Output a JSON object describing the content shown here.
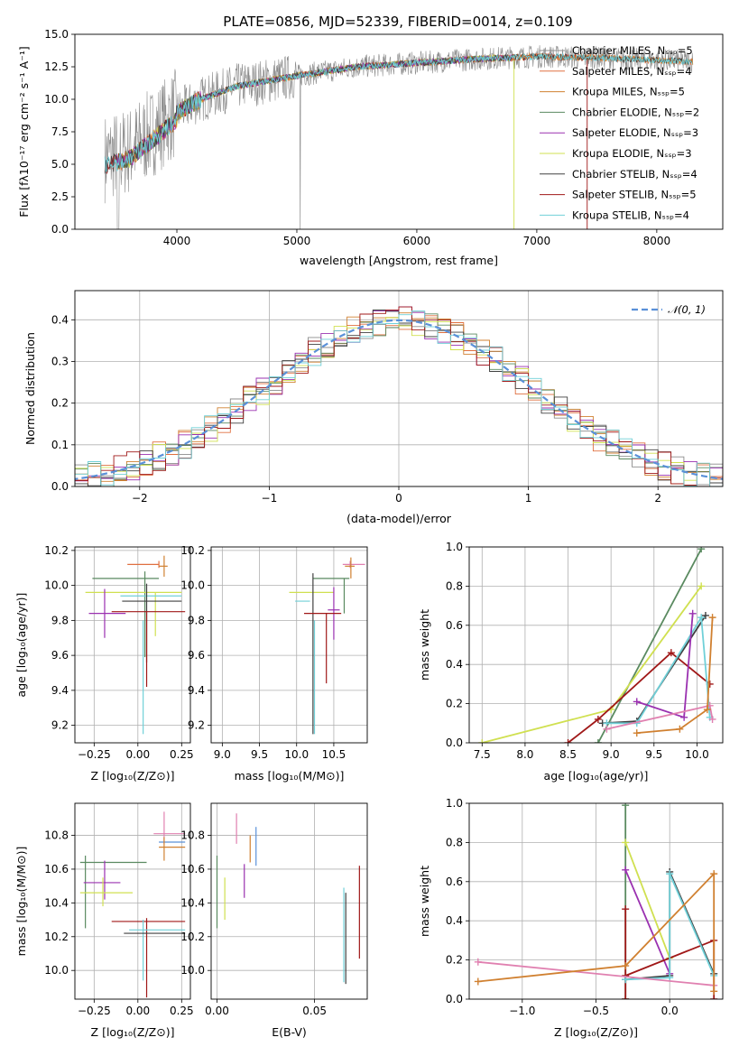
{
  "title": "PLATE=0856, MJD=52339, FIBERID=0014, z=0.109",
  "colors": {
    "chabrier_miles": "#8c8c8c",
    "salpeter_miles": "#e07040",
    "kroupa_miles": "#d08030",
    "chabrier_elodie": "#5a8a60",
    "salpeter_elodie": "#9a30b0",
    "kroupa_elodie": "#d0e050",
    "chabrier_stelib": "#404040",
    "salpeter_stelib": "#a01818",
    "kroupa_stelib": "#70d0d8",
    "pink": "#e080b0",
    "blue": "#5a90d8",
    "normal_curve": "#5a90d8"
  },
  "chart_data": [
    {
      "id": "spectrum",
      "type": "line",
      "title": "PLATE=0856, MJD=52339, FIBERID=0014, z=0.109",
      "xlabel": "wavelength [Angstrom, rest frame]",
      "ylabel": "Flux [fλ10⁻¹⁷ erg cm⁻² s⁻¹ A⁻¹]",
      "xlim": [
        3150,
        8550
      ],
      "ylim": [
        0,
        15
      ],
      "xticks": [
        "4000",
        "5000",
        "6000",
        "7000",
        "8000"
      ],
      "yticks": [
        "0.0",
        "2.5",
        "5.0",
        "7.5",
        "10.0",
        "12.5",
        "15.0"
      ],
      "legend": [
        "Chabrier MILES, Nₛₛₚ=5",
        "Salpeter MILES, Nₛₛₚ=4",
        "Kroupa MILES, Nₛₛₚ=5",
        "Chabrier ELODIE, Nₛₛₚ=2",
        "Salpeter ELODIE, Nₛₛₚ=3",
        "Kroupa ELODIE, Nₛₛₚ=3",
        "Chabrier STELIB, Nₛₛₚ=4",
        "Salpeter STELIB, Nₛₛₚ=5",
        "Kroupa STELIB, Nₛₛₚ=4"
      ],
      "legend_placement": "right",
      "continuum": [
        [
          3400,
          5.5
        ],
        [
          3600,
          6.0
        ],
        [
          3800,
          7.5
        ],
        [
          4000,
          9.0
        ],
        [
          4200,
          10.0
        ],
        [
          4500,
          11.0
        ],
        [
          5000,
          11.8
        ],
        [
          5500,
          12.5
        ],
        [
          6000,
          12.8
        ],
        [
          6500,
          13.1
        ],
        [
          7000,
          13.3
        ],
        [
          7500,
          13.2
        ],
        [
          8000,
          13.0
        ],
        [
          8300,
          12.9
        ]
      ]
    },
    {
      "id": "residuals",
      "type": "histogram",
      "xlabel": "(data-model)/error",
      "ylabel": "Normed distribution",
      "xlim": [
        -2.5,
        2.5
      ],
      "ylim": [
        0,
        0.47
      ],
      "xticks": [
        "−2",
        "−1",
        "0",
        "1",
        "2"
      ],
      "yticks": [
        "0.0",
        "0.1",
        "0.2",
        "0.3",
        "0.4"
      ],
      "legend": [
        "𝒩(0, 1)"
      ],
      "legend_placement": "upper right",
      "grid": true,
      "bin_width": 0.1
    },
    {
      "id": "age-vs-Z",
      "type": "errorbar",
      "xlabel": "Z [log₁₀(Z/Z⊙)]",
      "ylabel": "age  [log₁₀(age/yr)]",
      "xlim": [
        -0.36,
        0.3
      ],
      "ylim": [
        9.1,
        10.22
      ],
      "xticks": [
        "−0.25",
        "0.00",
        "0.25"
      ],
      "yticks": [
        "9.2",
        "9.4",
        "9.6",
        "9.8",
        "10.0",
        "10.2"
      ],
      "grid": true,
      "points": [
        {
          "x": 0.12,
          "y": 10.12,
          "xe": [
            -0.18,
            0.0
          ],
          "ye": [
            -0.02,
            0.02
          ],
          "c": "#e07040"
        },
        {
          "x": 0.15,
          "y": 10.11,
          "xe": [
            -0.03,
            0.02
          ],
          "ye": [
            -0.06,
            0.06
          ],
          "c": "#d08030"
        },
        {
          "x": 0.04,
          "y": 10.04,
          "xe": [
            -0.3,
            0.08
          ],
          "ye": [
            -0.45,
            0.04
          ],
          "c": "#5a8a60"
        },
        {
          "x": 0.1,
          "y": 9.96,
          "xe": [
            -0.4,
            0.15
          ],
          "ye": [
            -0.25,
            0.0
          ],
          "c": "#d0e050"
        },
        {
          "x": 0.25,
          "y": 9.94,
          "xe": [
            -0.35,
            0.0
          ],
          "ye": [
            0,
            0
          ],
          "c": "#70d0d8"
        },
        {
          "x": 0.05,
          "y": 9.91,
          "xe": [
            -0.14,
            0.2
          ],
          "ye": [
            -0.35,
            0.1
          ],
          "c": "#404040"
        },
        {
          "x": -0.19,
          "y": 9.84,
          "xe": [
            -0.09,
            0.12
          ],
          "ye": [
            -0.14,
            0.14
          ],
          "c": "#9a30b0"
        },
        {
          "x": 0.05,
          "y": 9.85,
          "xe": [
            -0.2,
            0.22
          ],
          "ye": [
            -0.43,
            0.0
          ],
          "c": "#a01818"
        },
        {
          "x": 0.03,
          "y": 9.6,
          "xe": [
            0,
            0
          ],
          "ye": [
            -0.45,
            0.2
          ],
          "c": "#70d0d8"
        }
      ]
    },
    {
      "id": "age-vs-mass",
      "type": "errorbar",
      "xlabel": "mass [log₁₀(M/M⊙)]",
      "ylabel": "",
      "xlim": [
        8.85,
        10.95
      ],
      "ylim": [
        9.1,
        10.22
      ],
      "xticks": [
        "9.0",
        "9.5",
        "10.0",
        "10.5"
      ],
      "yticks": [
        "9.2",
        "9.4",
        "9.6",
        "9.8",
        "10.0",
        "10.2"
      ],
      "grid": true,
      "points": [
        {
          "x": 10.72,
          "y": 10.12,
          "xe": [
            -0.1,
            0.2
          ],
          "ye": [
            -0.02,
            0.02
          ],
          "c": "#e080b0"
        },
        {
          "x": 10.73,
          "y": 10.11,
          "xe": [
            -0.08,
            0.05
          ],
          "ye": [
            -0.07,
            0.05
          ],
          "c": "#d08030"
        },
        {
          "x": 10.64,
          "y": 10.04,
          "xe": [
            -0.42,
            0.07
          ],
          "ye": [
            -0.2,
            0.0
          ],
          "c": "#5a8a60"
        },
        {
          "x": 10.3,
          "y": 9.96,
          "xe": [
            -0.4,
            0.2
          ],
          "ye": [
            0,
            0
          ],
          "c": "#d0e050"
        },
        {
          "x": 10.18,
          "y": 9.91,
          "xe": [
            -0.2,
            0.0
          ],
          "ye": [
            0,
            0
          ],
          "c": "#70d0d8"
        },
        {
          "x": 10.22,
          "y": 9.95,
          "xe": [
            0.0,
            0.0
          ],
          "ye": [
            -0.8,
            0.12
          ],
          "c": "#404040"
        },
        {
          "x": 10.5,
          "y": 9.86,
          "xe": [
            -0.08,
            0.08
          ],
          "ye": [
            -0.17,
            0.13
          ],
          "c": "#9a30b0"
        },
        {
          "x": 10.4,
          "y": 9.84,
          "xe": [
            -0.3,
            0.2
          ],
          "ye": [
            -0.4,
            0.0
          ],
          "c": "#a01818"
        },
        {
          "x": 10.24,
          "y": 9.6,
          "xe": [
            0,
            0
          ],
          "ye": [
            -0.45,
            0.2
          ],
          "c": "#70d0d8"
        }
      ]
    },
    {
      "id": "weight-vs-age",
      "type": "line",
      "xlabel": "age  [log₁₀(age/yr)]",
      "ylabel": "mass weight",
      "xlim": [
        7.35,
        10.3
      ],
      "ylim": [
        0,
        1
      ],
      "xticks": [
        "7.5",
        "8.0",
        "8.5",
        "9.0",
        "9.5",
        "10.0"
      ],
      "yticks": [
        "0.0",
        "0.2",
        "0.4",
        "0.6",
        "0.8",
        "1.0"
      ],
      "grid": true,
      "series": [
        {
          "c": "#5a8a60",
          "pts": [
            [
              8.85,
              0
            ],
            [
              10.05,
              0.99
            ]
          ]
        },
        {
          "c": "#d0e050",
          "pts": [
            [
              7.5,
              0
            ],
            [
              9.0,
              0.17
            ],
            [
              10.05,
              0.8
            ]
          ]
        },
        {
          "c": "#a01818",
          "pts": [
            [
              8.5,
              0
            ],
            [
              8.85,
              0.12
            ],
            [
              9.7,
              0.46
            ],
            [
              10.15,
              0.3
            ]
          ]
        },
        {
          "c": "#404040",
          "pts": [
            [
              8.9,
              0.1
            ],
            [
              9.3,
              0.11
            ],
            [
              10.1,
              0.65
            ]
          ]
        },
        {
          "c": "#70d0d8",
          "pts": [
            [
              8.95,
              0.1
            ],
            [
              9.3,
              0.1
            ],
            [
              10.05,
              0.64
            ],
            [
              10.15,
              0.13
            ]
          ]
        },
        {
          "c": "#9a30b0",
          "pts": [
            [
              9.3,
              0.21
            ],
            [
              9.85,
              0.13
            ],
            [
              9.95,
              0.66
            ]
          ]
        },
        {
          "c": "#e080b0",
          "pts": [
            [
              8.95,
              0.07
            ],
            [
              10.15,
              0.19
            ],
            [
              10.18,
              0.12
            ]
          ]
        },
        {
          "c": "#d08030",
          "pts": [
            [
              9.3,
              0.05
            ],
            [
              9.8,
              0.07
            ],
            [
              10.12,
              0.17
            ],
            [
              10.18,
              0.64
            ]
          ]
        }
      ]
    },
    {
      "id": "mass-vs-Z",
      "type": "errorbar",
      "xlabel": "Z [log₁₀(Z/Z⊙)]",
      "ylabel": "mass [log₁₀(M/M⊙)]",
      "xlim": [
        -0.36,
        0.3
      ],
      "ylim": [
        9.83,
        10.99
      ],
      "xticks": [
        "−0.25",
        "0.00",
        "0.25"
      ],
      "yticks": [
        "10.0",
        "10.2",
        "10.4",
        "10.6",
        "10.8"
      ],
      "grid": true,
      "points": [
        {
          "x": 0.15,
          "y": 10.81,
          "xe": [
            -0.06,
            0.12
          ],
          "ye": [
            -0.06,
            0.13
          ],
          "c": "#e080b0"
        },
        {
          "x": 0.15,
          "y": 10.76,
          "xe": [
            -0.03,
            0.12
          ],
          "ye": [
            0,
            0
          ],
          "c": "#5a90d8"
        },
        {
          "x": 0.15,
          "y": 10.73,
          "xe": [
            -0.03,
            0.12
          ],
          "ye": [
            -0.08,
            0.06
          ],
          "c": "#d08030"
        },
        {
          "x": -0.3,
          "y": 10.64,
          "xe": [
            -0.03,
            0.35
          ],
          "ye": [
            -0.39,
            0.04
          ],
          "c": "#5a8a60"
        },
        {
          "x": -0.19,
          "y": 10.52,
          "xe": [
            -0.12,
            0.09
          ],
          "ye": [
            -0.1,
            0.13
          ],
          "c": "#9a30b0"
        },
        {
          "x": -0.2,
          "y": 10.46,
          "xe": [
            -0.13,
            0.17
          ],
          "ye": [
            -0.08,
            0.09
          ],
          "c": "#d0e050"
        },
        {
          "x": 0.05,
          "y": 10.29,
          "xe": [
            -0.2,
            0.22
          ],
          "ye": [
            -0.45,
            0.02
          ],
          "c": "#a01818"
        },
        {
          "x": 0.03,
          "y": 10.24,
          "xe": [
            -0.08,
            0.24
          ],
          "ye": [
            -0.3,
            0.06
          ],
          "c": "#70d0d8"
        },
        {
          "x": 0.1,
          "y": 10.22,
          "xe": [
            -0.18,
            0.17
          ],
          "ye": [
            0,
            0
          ],
          "c": "#404040"
        }
      ]
    },
    {
      "id": "mass-vs-EBV",
      "type": "errorbar",
      "xlabel": "E(B-V)",
      "ylabel": "",
      "xlim": [
        -0.003,
        0.077
      ],
      "ylim": [
        9.83,
        10.99
      ],
      "xticks": [
        "0.00",
        "0.05"
      ],
      "yticks": [
        "10.0",
        "10.2",
        "10.4",
        "10.6",
        "10.8"
      ],
      "grid": true,
      "points": [
        {
          "x": 0.0,
          "y": 10.55,
          "ye": [
            -0.3,
            0.13
          ],
          "c": "#5a8a60"
        },
        {
          "x": 0.004,
          "y": 10.45,
          "ye": [
            -0.15,
            0.1
          ],
          "c": "#d0e050"
        },
        {
          "x": 0.01,
          "y": 10.81,
          "ye": [
            -0.06,
            0.12
          ],
          "c": "#e080b0"
        },
        {
          "x": 0.014,
          "y": 10.5,
          "ye": [
            -0.07,
            0.13
          ],
          "c": "#9a30b0"
        },
        {
          "x": 0.017,
          "y": 10.74,
          "ye": [
            -0.1,
            0.06
          ],
          "c": "#d08030"
        },
        {
          "x": 0.02,
          "y": 10.74,
          "ye": [
            -0.12,
            0.11
          ],
          "c": "#5a90d8"
        },
        {
          "x": 0.065,
          "y": 10.24,
          "ye": [
            -0.31,
            0.25
          ],
          "c": "#70d0d8"
        },
        {
          "x": 0.066,
          "y": 10.22,
          "ye": [
            -0.3,
            0.24
          ],
          "c": "#404040"
        },
        {
          "x": 0.073,
          "y": 10.35,
          "ye": [
            -0.28,
            0.27
          ],
          "c": "#a01818"
        }
      ]
    },
    {
      "id": "weight-vs-Z",
      "type": "line",
      "xlabel": "Z [log₁₀(Z/Z⊙)]",
      "ylabel": "mass weight",
      "xlim": [
        -1.36,
        0.36
      ],
      "ylim": [
        0,
        1
      ],
      "xticks": [
        "−1.0",
        "−0.5",
        "0.0"
      ],
      "yticks": [
        "0.0",
        "0.2",
        "0.4",
        "0.6",
        "0.8",
        "1.0"
      ],
      "grid": true,
      "series": [
        {
          "c": "#5a8a60",
          "pts": [
            [
              -0.3,
              0
            ],
            [
              -0.3,
              0.99
            ]
          ]
        },
        {
          "c": "#d0e050",
          "pts": [
            [
              -0.3,
              0.8
            ],
            [
              0.0,
              0.21
            ]
          ]
        },
        {
          "c": "#9a30b0",
          "pts": [
            [
              -0.3,
              0.66
            ],
            [
              0.0,
              0.13
            ]
          ]
        },
        {
          "c": "#a01818",
          "pts": [
            [
              -0.3,
              0.0
            ],
            [
              -0.3,
              0.46
            ],
            [
              -0.3,
              0.12
            ],
            [
              0.3,
              0.3
            ],
            [
              0.3,
              0.0
            ]
          ]
        },
        {
          "c": "#404040",
          "pts": [
            [
              -0.3,
              0.1
            ],
            [
              0.0,
              0.12
            ],
            [
              0.0,
              0.65
            ],
            [
              0.3,
              0.13
            ]
          ]
        },
        {
          "c": "#70d0d8",
          "pts": [
            [
              -0.3,
              0.1
            ],
            [
              0.0,
              0.11
            ],
            [
              0.0,
              0.64
            ],
            [
              0.3,
              0.12
            ]
          ]
        },
        {
          "c": "#e080b0",
          "pts": [
            [
              -1.3,
              0.19
            ],
            [
              0.3,
              0.07
            ]
          ]
        },
        {
          "c": "#d08030",
          "pts": [
            [
              -1.3,
              0.09
            ],
            [
              -0.3,
              0.17
            ],
            [
              0.3,
              0.64
            ],
            [
              0.3,
              0.04
            ]
          ]
        }
      ]
    }
  ]
}
